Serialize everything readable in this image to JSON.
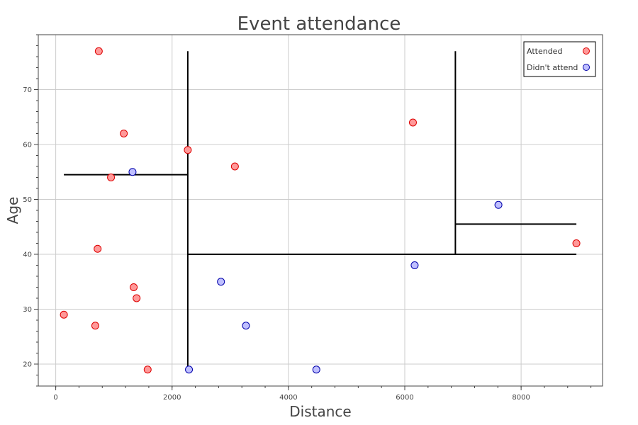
{
  "chart_data": {
    "type": "scatter",
    "title": "Event attendance",
    "xlabel": "Distance",
    "ylabel": "Age",
    "xlim": [
      -300,
      9400
    ],
    "ylim": [
      16,
      80
    ],
    "x_ticks": [
      0,
      2000,
      4000,
      6000,
      8000
    ],
    "y_ticks": [
      20,
      30,
      40,
      50,
      60,
      70
    ],
    "grid": true,
    "legend_position": "top-right",
    "series": [
      {
        "name": "Attended",
        "color": "#ff9999",
        "edge_color": "#dd0000",
        "points": [
          {
            "x": 740,
            "y": 77
          },
          {
            "x": 1170,
            "y": 62
          },
          {
            "x": 2270,
            "y": 59
          },
          {
            "x": 3080,
            "y": 56
          },
          {
            "x": 950,
            "y": 54
          },
          {
            "x": 720,
            "y": 41
          },
          {
            "x": 1340,
            "y": 34
          },
          {
            "x": 1390,
            "y": 32
          },
          {
            "x": 140,
            "y": 29
          },
          {
            "x": 680,
            "y": 27
          },
          {
            "x": 1580,
            "y": 19
          },
          {
            "x": 6140,
            "y": 64
          },
          {
            "x": 8950,
            "y": 42
          }
        ]
      },
      {
        "name": "Didn't attend",
        "color": "#bfbfff",
        "edge_color": "#0000aa",
        "points": [
          {
            "x": 1320,
            "y": 55
          },
          {
            "x": 2840,
            "y": 35
          },
          {
            "x": 3270,
            "y": 27
          },
          {
            "x": 2290,
            "y": 19
          },
          {
            "x": 4480,
            "y": 19
          },
          {
            "x": 6170,
            "y": 38
          },
          {
            "x": 7610,
            "y": 49
          }
        ]
      }
    ],
    "partition_lines": [
      {
        "x1": 2270,
        "y1": 19,
        "x2": 2270,
        "y2": 77
      },
      {
        "x1": 140,
        "y1": 54.5,
        "x2": 2270,
        "y2": 54.5
      },
      {
        "x1": 2270,
        "y1": 40,
        "x2": 8950,
        "y2": 40
      },
      {
        "x1": 6870,
        "y1": 40,
        "x2": 6870,
        "y2": 77
      },
      {
        "x1": 6870,
        "y1": 45.5,
        "x2": 8950,
        "y2": 45.5
      }
    ]
  }
}
